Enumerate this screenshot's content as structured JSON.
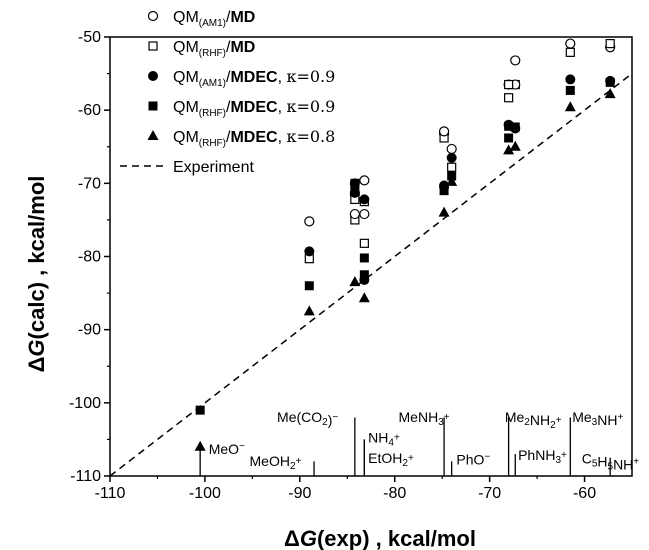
{
  "chart_data": {
    "type": "scatter",
    "xlabel": "ΔG(exp) , kcal/mol",
    "ylabel": "ΔG(calc) , kcal/mol",
    "xlim": [
      -110,
      -55
    ],
    "ylim": [
      -110,
      -50
    ],
    "xticks": [
      -110,
      -100,
      -90,
      -80,
      -70,
      -60
    ],
    "yticks": [
      -110,
      -100,
      -90,
      -80,
      -70,
      -60,
      -50
    ],
    "grid": false,
    "legend_position": "top-left",
    "x": [
      -100.5,
      -89,
      -84.2,
      -83.2,
      -74.8,
      -74,
      -68,
      -67.3,
      -61.5,
      -57.3
    ],
    "series": [
      {
        "legend": {
          "base": "QM",
          "sub": "(AM1)",
          "method": "MD",
          "kappa": ""
        },
        "marker": "circle-open",
        "values": [
          null,
          -75.2,
          -71.5,
          -69.6,
          -63.2,
          -65.3,
          -56.5,
          -53.2,
          -50.9,
          -51.4
        ]
      },
      {
        "legend": {
          "base": "QM",
          "sub": "(RHF)",
          "method": "MD",
          "kappa": ""
        },
        "marker": "square-open",
        "values": [
          null,
          -80.3,
          -75,
          -72.5,
          -63.8,
          -67.8,
          -58.3,
          -56.5,
          -52.1,
          -50.9
        ]
      },
      {
        "legend": {
          "base": "QM",
          "sub": "(AM1)",
          "method": "MDEC",
          "kappa": "κ=0.9"
        },
        "marker": "circle-filled",
        "values": [
          null,
          -79.3,
          -70,
          -72.2,
          -70.5,
          -66.5,
          -62,
          -62.5,
          -55.8,
          -56
        ]
      },
      {
        "legend": {
          "base": "QM",
          "sub": "(RHF)",
          "method": "MDEC",
          "kappa": "κ=0.9"
        },
        "marker": "square-filled",
        "values": [
          -101,
          -84,
          -70.5,
          -80.2,
          -71,
          -69,
          -63.8,
          -62.3,
          -57.3,
          -56.2
        ]
      },
      {
        "legend": {
          "base": "QM",
          "sub": "(RHF)",
          "method": "MDEC",
          "kappa": "κ=0.8"
        },
        "marker": "triangle-filled",
        "values": [
          -106,
          -87.5,
          -83.5,
          -85.7,
          -74,
          -69.8,
          -65.5,
          -65,
          -59.6,
          -57.8
        ]
      }
    ],
    "extra_points": {
      "circle-open": [
        [
          -84.2,
          -74.2
        ],
        [
          -83.2,
          -74.2
        ],
        [
          -74.8,
          -62.9
        ],
        [
          -67.3,
          -56.5
        ]
      ],
      "square-open": [
        [
          -83.2,
          -78.2
        ],
        [
          -84.2,
          -72.2
        ],
        [
          -68,
          -56.5
        ]
      ],
      "circle-filled": [
        [
          -84.2,
          -71.3
        ],
        [
          -83.2,
          -83.2
        ],
        [
          -74.8,
          -70.3
        ]
      ],
      "square-filled": [
        [
          -83.2,
          -82.5
        ],
        [
          -68,
          -62.2
        ],
        [
          -84.2,
          -70
        ]
      ]
    },
    "reference_line": {
      "legend": "Experiment",
      "points": [
        [
          -110,
          -110
        ],
        [
          -55,
          -55
        ]
      ]
    },
    "molecules": [
      {
        "x": -100.5,
        "y_top": -106,
        "lx": -99.6,
        "ly": -107,
        "parts": [
          [
            "MeO",
            ""
          ],
          [
            "−",
            "sup"
          ]
        ]
      },
      {
        "x": -88.5,
        "y_top": -108,
        "lx": -95.3,
        "ly": -108.6,
        "parts": [
          [
            "MeOH",
            ""
          ],
          [
            "2",
            "sub"
          ],
          [
            "+",
            "sup"
          ]
        ]
      },
      {
        "x": -84.2,
        "y_top": -102,
        "lx": -92.4,
        "ly": -102.6,
        "parts": [
          [
            "Me(CO",
            ""
          ],
          [
            "2",
            "sub"
          ],
          [
            ")",
            ""
          ],
          [
            "−",
            "sup"
          ]
        ]
      },
      {
        "x": -83.2,
        "y_top": -105,
        "lx": -82.8,
        "ly": -105.4,
        "parts": [
          [
            "NH",
            ""
          ],
          [
            "4",
            "sub"
          ],
          [
            "+",
            "sup"
          ]
        ]
      },
      {
        "x": -83.2,
        "y_top": -105,
        "lx": -82.8,
        "ly": -108.2,
        "parts": [
          [
            "EtOH",
            ""
          ],
          [
            "2",
            "sub"
          ],
          [
            "+",
            "sup"
          ]
        ]
      },
      {
        "x": -74.8,
        "y_top": -102,
        "lx": -79.6,
        "ly": -102.6,
        "parts": [
          [
            "MeNH",
            ""
          ],
          [
            "3",
            "sub"
          ],
          [
            "+",
            "sup"
          ]
        ]
      },
      {
        "x": -74,
        "y_top": -108,
        "lx": -73.5,
        "ly": -108.4,
        "parts": [
          [
            "PhO",
            ""
          ],
          [
            "−",
            "sup"
          ]
        ]
      },
      {
        "x": -68,
        "y_top": -102,
        "lx": -68.4,
        "ly": -102.6,
        "parts": [
          [
            "Me",
            ""
          ],
          [
            "2",
            "sub"
          ],
          [
            "NH",
            ""
          ],
          [
            "2",
            "sub"
          ],
          [
            "+",
            "sup"
          ]
        ]
      },
      {
        "x": -67.3,
        "y_top": -107,
        "lx": -67,
        "ly": -107.8,
        "parts": [
          [
            "PhNH",
            ""
          ],
          [
            "3",
            "sub"
          ],
          [
            "+",
            "sup"
          ]
        ]
      },
      {
        "x": -61.5,
        "y_top": -102,
        "lx": -61.3,
        "ly": -102.6,
        "parts": [
          [
            "Me",
            ""
          ],
          [
            "3",
            "sub"
          ],
          [
            "NH",
            ""
          ],
          [
            "+",
            "sup"
          ]
        ]
      },
      {
        "x": -57.3,
        "y_top": -107.5,
        "lx": -60.3,
        "ly": -108.3,
        "parts": [
          [
            "C",
            ""
          ],
          [
            "5",
            "sub"
          ],
          [
            "H",
            ""
          ],
          [
            "5",
            "sub"
          ],
          [
            "NH",
            ""
          ],
          [
            "+",
            "sup"
          ]
        ]
      }
    ]
  }
}
